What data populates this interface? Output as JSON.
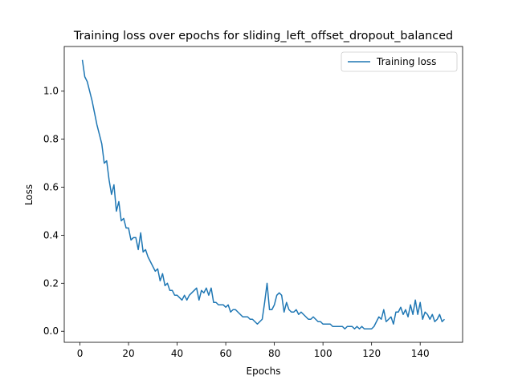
{
  "chart_data": {
    "type": "line",
    "title": "Training loss over epochs for sliding_left_offset_dropout_balanced",
    "x_label": "Epochs",
    "y_label": "Loss",
    "x": [
      1,
      2,
      3,
      4,
      5,
      6,
      7,
      8,
      9,
      10,
      11,
      12,
      13,
      14,
      15,
      16,
      17,
      18,
      19,
      20,
      21,
      22,
      23,
      24,
      25,
      26,
      27,
      28,
      29,
      30,
      31,
      32,
      33,
      34,
      35,
      36,
      37,
      38,
      39,
      40,
      41,
      42,
      43,
      44,
      45,
      46,
      47,
      48,
      49,
      50,
      51,
      52,
      53,
      54,
      55,
      56,
      57,
      58,
      59,
      60,
      61,
      62,
      63,
      64,
      65,
      66,
      67,
      68,
      69,
      70,
      71,
      72,
      73,
      74,
      75,
      76,
      77,
      78,
      79,
      80,
      81,
      82,
      83,
      84,
      85,
      86,
      87,
      88,
      89,
      90,
      91,
      92,
      93,
      94,
      95,
      96,
      97,
      98,
      99,
      100,
      101,
      102,
      103,
      104,
      105,
      106,
      107,
      108,
      109,
      110,
      111,
      112,
      113,
      114,
      115,
      116,
      117,
      118,
      119,
      120,
      121,
      122,
      123,
      124,
      125,
      126,
      127,
      128,
      129,
      130,
      131,
      132,
      133,
      134,
      135,
      136,
      137,
      138,
      139,
      140,
      141,
      142,
      143,
      144,
      145,
      146,
      147,
      148,
      149,
      150
    ],
    "series": [
      {
        "name": "Training loss",
        "color": "#1f77b4",
        "values": [
          1.13,
          1.06,
          1.04,
          1.0,
          0.96,
          0.91,
          0.86,
          0.82,
          0.78,
          0.7,
          0.71,
          0.63,
          0.57,
          0.61,
          0.5,
          0.54,
          0.46,
          0.47,
          0.43,
          0.43,
          0.38,
          0.39,
          0.39,
          0.34,
          0.41,
          0.33,
          0.34,
          0.31,
          0.29,
          0.27,
          0.25,
          0.26,
          0.21,
          0.24,
          0.19,
          0.2,
          0.17,
          0.17,
          0.15,
          0.15,
          0.14,
          0.13,
          0.15,
          0.13,
          0.15,
          0.16,
          0.17,
          0.18,
          0.13,
          0.17,
          0.16,
          0.18,
          0.15,
          0.18,
          0.12,
          0.12,
          0.11,
          0.11,
          0.11,
          0.1,
          0.11,
          0.08,
          0.09,
          0.09,
          0.08,
          0.07,
          0.06,
          0.06,
          0.06,
          0.05,
          0.05,
          0.04,
          0.03,
          0.04,
          0.05,
          0.12,
          0.2,
          0.09,
          0.09,
          0.11,
          0.15,
          0.16,
          0.15,
          0.08,
          0.12,
          0.09,
          0.08,
          0.08,
          0.09,
          0.07,
          0.08,
          0.07,
          0.06,
          0.05,
          0.05,
          0.06,
          0.05,
          0.04,
          0.04,
          0.03,
          0.03,
          0.03,
          0.03,
          0.02,
          0.02,
          0.02,
          0.02,
          0.02,
          0.01,
          0.02,
          0.02,
          0.02,
          0.01,
          0.02,
          0.01,
          0.02,
          0.01,
          0.01,
          0.01,
          0.01,
          0.02,
          0.04,
          0.06,
          0.05,
          0.09,
          0.04,
          0.05,
          0.06,
          0.03,
          0.08,
          0.08,
          0.1,
          0.07,
          0.09,
          0.06,
          0.11,
          0.07,
          0.13,
          0.07,
          0.12,
          0.05,
          0.08,
          0.07,
          0.05,
          0.07,
          0.04,
          0.05,
          0.07,
          0.04,
          0.05
        ]
      }
    ],
    "xlim": [
      -6.45,
      157.45
    ],
    "xticks": [
      0,
      20,
      40,
      60,
      80,
      100,
      120,
      140
    ],
    "ylim": [
      -0.046,
      1.186
    ],
    "yticks": [
      {
        "value": 0,
        "label": "0.0"
      },
      0.2,
      0.4,
      0.6,
      0.8,
      {
        "value": 1,
        "label": "1.0"
      }
    ],
    "legend": "upper right",
    "grid": false
  }
}
